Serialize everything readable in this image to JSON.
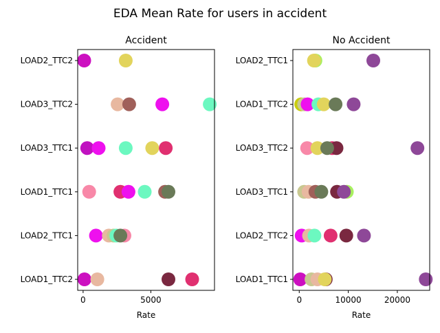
{
  "figure": {
    "title": "EDA Mean Rate for users in accident"
  },
  "chart_data": [
    {
      "type": "scatter",
      "title": "Accident",
      "xlabel": "Rate",
      "ylabel": "",
      "xlim": [
        -400,
        9700
      ],
      "xticks": [
        0,
        5000
      ],
      "xtick_labels": [
        "0",
        "5000"
      ],
      "categories": [
        "LOAD1_TTC2",
        "LOAD2_TTC1",
        "LOAD1_TTC1",
        "LOAD3_TTC1",
        "LOAD3_TTC2",
        "LOAD2_TTC2"
      ],
      "grid": false,
      "legend": "none",
      "points": [
        {
          "category": "LOAD2_TTC2",
          "x": 80,
          "color": "#cc10c0"
        },
        {
          "category": "LOAD2_TTC2",
          "x": 3150,
          "color": "#e2d45c"
        },
        {
          "category": "LOAD3_TTC2",
          "x": 2550,
          "color": "#e8b8a0"
        },
        {
          "category": "LOAD3_TTC2",
          "x": 3400,
          "color": "#a0605a"
        },
        {
          "category": "LOAD3_TTC2",
          "x": 5850,
          "color": "#ee10ee"
        },
        {
          "category": "LOAD3_TTC2",
          "x": 9350,
          "color": "#6cf8c0"
        },
        {
          "category": "LOAD3_TTC1",
          "x": 300,
          "color": "#c012c0"
        },
        {
          "category": "LOAD3_TTC1",
          "x": 1150,
          "color": "#ee10ee"
        },
        {
          "category": "LOAD3_TTC1",
          "x": 3150,
          "color": "#6cf8c0"
        },
        {
          "category": "LOAD3_TTC1",
          "x": 5100,
          "color": "#e2d45c"
        },
        {
          "category": "LOAD3_TTC1",
          "x": 6100,
          "color": "#e03070"
        },
        {
          "category": "LOAD1_TTC1",
          "x": 450,
          "color": "#f888a8"
        },
        {
          "category": "LOAD1_TTC1",
          "x": 2750,
          "color": "#e03070"
        },
        {
          "category": "LOAD1_TTC1",
          "x": 3350,
          "color": "#ee10ee"
        },
        {
          "category": "LOAD1_TTC1",
          "x": 4550,
          "color": "#6cf8c0"
        },
        {
          "category": "LOAD1_TTC1",
          "x": 6050,
          "color": "#a0605a"
        },
        {
          "category": "LOAD1_TTC1",
          "x": 6300,
          "color": "#6a7a58"
        },
        {
          "category": "LOAD2_TTC1",
          "x": 950,
          "color": "#ee10ee"
        },
        {
          "category": "LOAD2_TTC1",
          "x": 1900,
          "color": "#e8b8a0"
        },
        {
          "category": "LOAD2_TTC1",
          "x": 2250,
          "color": "#c8c890"
        },
        {
          "category": "LOAD2_TTC1",
          "x": 2450,
          "color": "#6cf8c0"
        },
        {
          "category": "LOAD2_TTC1",
          "x": 3050,
          "color": "#f888a8"
        },
        {
          "category": "LOAD2_TTC1",
          "x": 2750,
          "color": "#6a7a58"
        },
        {
          "category": "LOAD1_TTC2",
          "x": 100,
          "color": "#cc10c0"
        },
        {
          "category": "LOAD1_TTC2",
          "x": 1050,
          "color": "#e8b8a0"
        },
        {
          "category": "LOAD1_TTC2",
          "x": 6300,
          "color": "#7a2840"
        },
        {
          "category": "LOAD1_TTC2",
          "x": 8050,
          "color": "#e03070"
        }
      ]
    },
    {
      "type": "scatter",
      "title": "No Accident",
      "xlabel": "Rate",
      "ylabel": "",
      "xlim": [
        -1300,
        26600
      ],
      "xticks": [
        0,
        10000,
        20000
      ],
      "xtick_labels": [
        "0",
        "10000",
        "20000"
      ],
      "categories": [
        "LOAD1_TTC1",
        "LOAD2_TTC2",
        "LOAD3_TTC1",
        "LOAD3_TTC2",
        "LOAD1_TTC2",
        "LOAD2_TTC1"
      ],
      "grid": false,
      "legend": "none",
      "points": [
        {
          "category": "LOAD2_TTC1",
          "x": 3300,
          "color": "#a8f060"
        },
        {
          "category": "LOAD2_TTC1",
          "x": 3000,
          "color": "#e2d45c"
        },
        {
          "category": "LOAD2_TTC1",
          "x": 15100,
          "color": "#8e4898"
        },
        {
          "category": "LOAD1_TTC2",
          "x": 400,
          "color": "#c8cc10"
        },
        {
          "category": "LOAD1_TTC2",
          "x": 1000,
          "color": "#c8c890"
        },
        {
          "category": "LOAD1_TTC2",
          "x": 1700,
          "color": "#ee10ee"
        },
        {
          "category": "LOAD1_TTC2",
          "x": 3900,
          "color": "#6cf8c0"
        },
        {
          "category": "LOAD1_TTC2",
          "x": 5000,
          "color": "#e2d45c"
        },
        {
          "category": "LOAD1_TTC2",
          "x": 7400,
          "color": "#6a7a58"
        },
        {
          "category": "LOAD1_TTC2",
          "x": 11100,
          "color": "#8e4898"
        },
        {
          "category": "LOAD3_TTC2",
          "x": 1600,
          "color": "#f888a8"
        },
        {
          "category": "LOAD3_TTC2",
          "x": 3700,
          "color": "#e2d45c"
        },
        {
          "category": "LOAD3_TTC2",
          "x": 6700,
          "color": "#e03070"
        },
        {
          "category": "LOAD3_TTC2",
          "x": 7600,
          "color": "#7a2840"
        },
        {
          "category": "LOAD3_TTC2",
          "x": 5700,
          "color": "#6a7a58"
        },
        {
          "category": "LOAD3_TTC2",
          "x": 24100,
          "color": "#8e4898"
        },
        {
          "category": "LOAD3_TTC1",
          "x": 1000,
          "color": "#c8c890"
        },
        {
          "category": "LOAD3_TTC1",
          "x": 1900,
          "color": "#e8b8a0"
        },
        {
          "category": "LOAD3_TTC1",
          "x": 3300,
          "color": "#a0605a"
        },
        {
          "category": "LOAD3_TTC1",
          "x": 4500,
          "color": "#6a7a58"
        },
        {
          "category": "LOAD3_TTC1",
          "x": 7700,
          "color": "#7a2840"
        },
        {
          "category": "LOAD3_TTC1",
          "x": 9700,
          "color": "#a8f060"
        },
        {
          "category": "LOAD3_TTC1",
          "x": 9100,
          "color": "#8e4898"
        },
        {
          "category": "LOAD2_TTC2",
          "x": 500,
          "color": "#ee10ee"
        },
        {
          "category": "LOAD2_TTC2",
          "x": 2000,
          "color": "#e8b8a0"
        },
        {
          "category": "LOAD2_TTC2",
          "x": 3100,
          "color": "#6cf8c0"
        },
        {
          "category": "LOAD2_TTC2",
          "x": 6400,
          "color": "#e03070"
        },
        {
          "category": "LOAD2_TTC2",
          "x": 9600,
          "color": "#7a2840"
        },
        {
          "category": "LOAD2_TTC2",
          "x": 13200,
          "color": "#8e4898"
        },
        {
          "category": "LOAD1_TTC1",
          "x": 200,
          "color": "#cc10c0"
        },
        {
          "category": "LOAD1_TTC1",
          "x": 2500,
          "color": "#c8c890"
        },
        {
          "category": "LOAD1_TTC1",
          "x": 3700,
          "color": "#e8b8a0"
        },
        {
          "category": "LOAD1_TTC1",
          "x": 5400,
          "color": "#7a2840"
        },
        {
          "category": "LOAD1_TTC1",
          "x": 5200,
          "color": "#e2d45c"
        },
        {
          "category": "LOAD1_TTC1",
          "x": 25800,
          "color": "#8e4898"
        }
      ]
    }
  ]
}
